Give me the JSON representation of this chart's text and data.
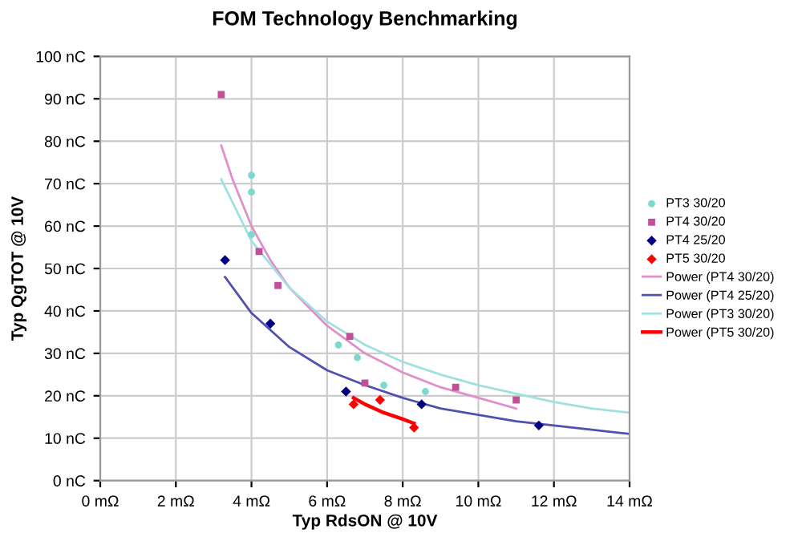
{
  "chart_data": {
    "type": "scatter",
    "title": "FOM Technology Benchmarking",
    "xlabel": "Typ RdsON @ 10V",
    "ylabel": "Typ QgTOT @ 10V",
    "xlim": [
      0,
      14
    ],
    "ylim": [
      0,
      100
    ],
    "xticks": [
      {
        "value": 0,
        "label": "0 mΩ"
      },
      {
        "value": 2,
        "label": "2 mΩ"
      },
      {
        "value": 4,
        "label": "4 mΩ"
      },
      {
        "value": 6,
        "label": "6 mΩ"
      },
      {
        "value": 8,
        "label": "8 mΩ"
      },
      {
        "value": 10,
        "label": "10 mΩ"
      },
      {
        "value": 12,
        "label": "12 mΩ"
      },
      {
        "value": 14,
        "label": "14 mΩ"
      }
    ],
    "yticks": [
      {
        "value": 0,
        "label": "0 nC"
      },
      {
        "value": 10,
        "label": "10 nC"
      },
      {
        "value": 20,
        "label": "20 nC"
      },
      {
        "value": 30,
        "label": "30 nC"
      },
      {
        "value": 40,
        "label": "40 nC"
      },
      {
        "value": 50,
        "label": "50 nC"
      },
      {
        "value": 60,
        "label": "60 nC"
      },
      {
        "value": 70,
        "label": "70 nC"
      },
      {
        "value": 80,
        "label": "80 nC"
      },
      {
        "value": 90,
        "label": "90 nC"
      },
      {
        "value": 100,
        "label": "100 nC"
      }
    ],
    "grid": true,
    "legend": "right",
    "series": [
      {
        "name": "PT3 30/20",
        "marker": "circle",
        "color": "#7fd8d0",
        "x": [
          4.0,
          4.0,
          4.0,
          6.3,
          6.8,
          7.5,
          8.6
        ],
        "values": [
          72,
          68,
          58,
          32,
          29,
          22.5,
          21
        ]
      },
      {
        "name": "PT4 30/20",
        "marker": "square",
        "color": "#c0509a",
        "x": [
          3.2,
          4.2,
          4.7,
          6.6,
          7.0,
          9.4,
          11.0
        ],
        "values": [
          91,
          54,
          46,
          34,
          23,
          22,
          19
        ]
      },
      {
        "name": "PT4 25/20",
        "marker": "diamond",
        "color": "#000080",
        "x": [
          3.3,
          4.5,
          6.5,
          8.5,
          11.6
        ],
        "values": [
          52,
          37,
          21,
          18,
          13
        ]
      },
      {
        "name": "PT5 30/20",
        "marker": "diamond",
        "color": "#ff0000",
        "x": [
          6.7,
          7.4,
          8.3
        ],
        "values": [
          18,
          19,
          12.5
        ]
      },
      {
        "name": "Power (PT4 30/20)",
        "type": "line",
        "marker": "none",
        "color": "#e090c8",
        "x": [
          3.2,
          3.5,
          4,
          4.5,
          5,
          6,
          7,
          8,
          9,
          10,
          11
        ],
        "values": [
          79,
          71,
          60,
          52,
          45.5,
          36.5,
          30,
          25.5,
          22,
          19.5,
          17
        ]
      },
      {
        "name": "Power (PT4 25/20)",
        "type": "line",
        "marker": "none",
        "color": "#5050b0",
        "x": [
          3.3,
          4,
          5,
          6,
          7,
          8,
          9,
          10,
          11,
          12,
          13,
          14
        ],
        "values": [
          48,
          39.5,
          31.5,
          26,
          22.5,
          19.5,
          17,
          15.5,
          14,
          13,
          12,
          11
        ]
      },
      {
        "name": "Power (PT3 30/20)",
        "type": "line",
        "marker": "none",
        "color": "#a0e0e0",
        "x": [
          3.2,
          4,
          5,
          6,
          7,
          8,
          9,
          10,
          11,
          12,
          13,
          14
        ],
        "values": [
          71,
          56.5,
          45.5,
          37.5,
          32,
          28,
          25,
          22.5,
          20.5,
          18.5,
          17,
          16
        ]
      },
      {
        "name": "Power (PT5 30/20)",
        "type": "line",
        "marker": "none",
        "color": "#ff0000",
        "x": [
          6.7,
          7,
          7.5,
          8,
          8.3
        ],
        "values": [
          19.5,
          18,
          16,
          14.5,
          13.5
        ]
      }
    ]
  }
}
